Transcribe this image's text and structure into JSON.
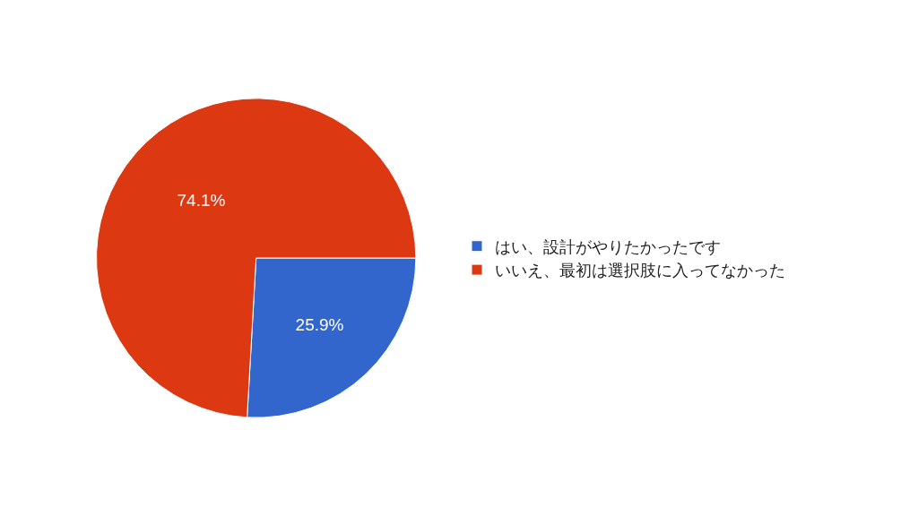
{
  "chart_data": {
    "type": "pie",
    "categories": [
      "はい、設計がやりたかったです",
      "いいえ、最初は選択肢に入ってなかった"
    ],
    "values": [
      25.9,
      74.1
    ],
    "colors": [
      "#3366cc",
      "#dc3912"
    ],
    "value_labels": [
      "25.9%",
      "74.1%"
    ],
    "legend": "right"
  }
}
